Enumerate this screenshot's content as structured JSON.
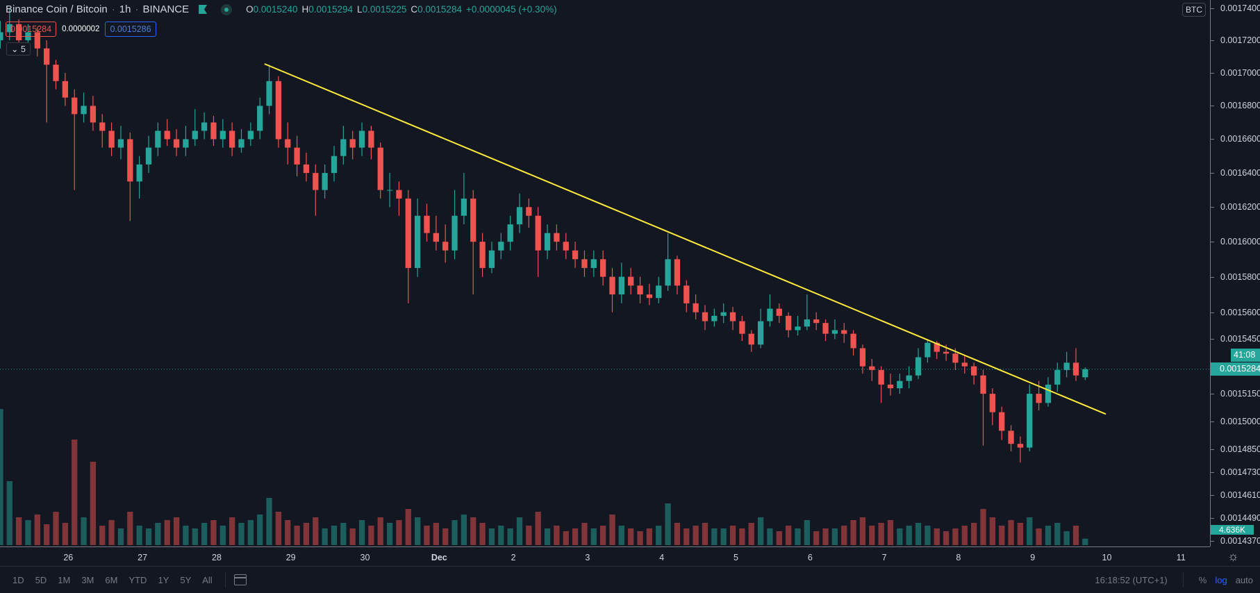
{
  "header": {
    "symbol": "Binance Coin / Bitcoin",
    "interval": "1h",
    "exchange": "BINANCE",
    "ohlc": {
      "o_label": "O",
      "o": "0.0015240",
      "h_label": "H",
      "h": "0.0015294",
      "l_label": "L",
      "l": "0.0015225",
      "c_label": "C",
      "c": "0.0015284",
      "change": "+0.0000045 (+0.30%)"
    },
    "bid": "0.0015284",
    "spread": "0.0000002",
    "ask": "0.0015286",
    "indicators_collapse": "5",
    "collapse_icon": "⌄"
  },
  "price_axis": {
    "currency_badge": "BTC",
    "labels": [
      "0.0017400",
      "0.0017200",
      "0.0017000",
      "0.0016800",
      "0.0016600",
      "0.0016400",
      "0.0016200",
      "0.0016000",
      "0.0015800",
      "0.0015600",
      "0.0015450",
      "0.0015150",
      "0.0015000",
      "0.0014850",
      "0.0014730",
      "0.0014610",
      "0.0014490",
      "0.0014370"
    ],
    "current_price": "0.0015284",
    "countdown": "41:08",
    "volume_label": "4.636K"
  },
  "time_axis": {
    "labels": [
      "26",
      "27",
      "28",
      "29",
      "30",
      "Dec",
      "2",
      "3",
      "4",
      "5",
      "6",
      "7",
      "8",
      "9",
      "10",
      "11"
    ]
  },
  "toolbar": {
    "ranges": [
      "1D",
      "5D",
      "1M",
      "3M",
      "6M",
      "YTD",
      "1Y",
      "5Y",
      "All"
    ],
    "clock": "16:18:52 (UTC+1)",
    "percent": "%",
    "log": "log",
    "auto": "auto",
    "settings_icon": "☼"
  },
  "colors": {
    "background": "#131722",
    "up": "#26a69a",
    "down": "#ef5350",
    "trendline": "#ffeb3b",
    "log_active": "#2962ff"
  },
  "chart_data": {
    "type": "candlestick",
    "scale": "log",
    "ylim": [
      0.00143,
      0.001745
    ],
    "grid": false,
    "start": "Nov 25 02:00",
    "step_hours": 3,
    "candles_ohlc": [
      [
        0.00172,
        0.001732,
        0.001715,
        0.001725
      ],
      [
        0.001725,
        0.00174,
        0.00172,
        0.00173
      ],
      [
        0.00173,
        0.001733,
        0.001715,
        0.00172
      ],
      [
        0.00172,
        0.00173,
        0.001718,
        0.001725
      ],
      [
        0.001725,
        0.001728,
        0.00171,
        0.001715
      ],
      [
        0.001715,
        0.00172,
        0.00167,
        0.001705
      ],
      [
        0.001705,
        0.001708,
        0.00169,
        0.001695
      ],
      [
        0.001695,
        0.0017,
        0.00168,
        0.001685
      ],
      [
        0.001685,
        0.00169,
        0.00163,
        0.001675
      ],
      [
        0.001675,
        0.001688,
        0.00167,
        0.00168
      ],
      [
        0.00168,
        0.001686,
        0.001665,
        0.00167
      ],
      [
        0.00167,
        0.001675,
        0.001655,
        0.001665
      ],
      [
        0.001665,
        0.00167,
        0.00165,
        0.001655
      ],
      [
        0.001655,
        0.001668,
        0.001648,
        0.00166
      ],
      [
        0.00166,
        0.001664,
        0.001612,
        0.001635
      ],
      [
        0.001635,
        0.00165,
        0.001625,
        0.001645
      ],
      [
        0.001645,
        0.001662,
        0.00164,
        0.001655
      ],
      [
        0.001655,
        0.00167,
        0.00165,
        0.001665
      ],
      [
        0.001665,
        0.001672,
        0.001656,
        0.00166
      ],
      [
        0.00166,
        0.001666,
        0.00165,
        0.001655
      ],
      [
        0.001655,
        0.001668,
        0.00165,
        0.00166
      ],
      [
        0.00166,
        0.001678,
        0.001656,
        0.001665
      ],
      [
        0.001665,
        0.001676,
        0.00166,
        0.00167
      ],
      [
        0.00167,
        0.001674,
        0.001656,
        0.00166
      ],
      [
        0.00166,
        0.001672,
        0.001655,
        0.001665
      ],
      [
        0.001665,
        0.00167,
        0.00165,
        0.001655
      ],
      [
        0.001655,
        0.001666,
        0.001652,
        0.00166
      ],
      [
        0.00166,
        0.00167,
        0.001656,
        0.001665
      ],
      [
        0.001665,
        0.001685,
        0.00166,
        0.00168
      ],
      [
        0.00168,
        0.001705,
        0.001675,
        0.001695
      ],
      [
        0.001695,
        0.001698,
        0.001655,
        0.00166
      ],
      [
        0.00166,
        0.00167,
        0.001645,
        0.001655
      ],
      [
        0.001655,
        0.001662,
        0.001638,
        0.001645
      ],
      [
        0.001645,
        0.001652,
        0.001635,
        0.00164
      ],
      [
        0.00164,
        0.001645,
        0.001615,
        0.00163
      ],
      [
        0.00163,
        0.001645,
        0.001625,
        0.00164
      ],
      [
        0.00164,
        0.001656,
        0.001635,
        0.00165
      ],
      [
        0.00165,
        0.001668,
        0.001645,
        0.00166
      ],
      [
        0.00166,
        0.001665,
        0.001648,
        0.001655
      ],
      [
        0.001655,
        0.00167,
        0.00165,
        0.001665
      ],
      [
        0.001665,
        0.001668,
        0.001648,
        0.001655
      ],
      [
        0.001655,
        0.001658,
        0.001625,
        0.00163
      ],
      [
        0.00163,
        0.00164,
        0.00162,
        0.00163
      ],
      [
        0.00163,
        0.001635,
        0.001615,
        0.001625
      ],
      [
        0.001625,
        0.00163,
        0.001565,
        0.001585
      ],
      [
        0.001585,
        0.001625,
        0.00158,
        0.001615
      ],
      [
        0.001615,
        0.001622,
        0.0016,
        0.001605
      ],
      [
        0.001605,
        0.001615,
        0.001595,
        0.0016
      ],
      [
        0.0016,
        0.00161,
        0.001588,
        0.001595
      ],
      [
        0.001595,
        0.00163,
        0.00159,
        0.001615
      ],
      [
        0.001615,
        0.00164,
        0.00161,
        0.001625
      ],
      [
        0.001625,
        0.00163,
        0.00157,
        0.0016
      ],
      [
        0.0016,
        0.001605,
        0.00158,
        0.001585
      ],
      [
        0.001585,
        0.0016,
        0.001582,
        0.001595
      ],
      [
        0.001595,
        0.001605,
        0.00159,
        0.0016
      ],
      [
        0.0016,
        0.001615,
        0.001595,
        0.00161
      ],
      [
        0.00161,
        0.001628,
        0.001605,
        0.00162
      ],
      [
        0.00162,
        0.001625,
        0.001608,
        0.001615
      ],
      [
        0.001615,
        0.00162,
        0.00158,
        0.001595
      ],
      [
        0.001595,
        0.00161,
        0.00159,
        0.001605
      ],
      [
        0.001605,
        0.00161,
        0.001595,
        0.0016
      ],
      [
        0.0016,
        0.001605,
        0.00159,
        0.001595
      ],
      [
        0.001595,
        0.0016,
        0.001585,
        0.00159
      ],
      [
        0.00159,
        0.001595,
        0.00158,
        0.001585
      ],
      [
        0.001585,
        0.001595,
        0.00158,
        0.00159
      ],
      [
        0.00159,
        0.001595,
        0.001575,
        0.00158
      ],
      [
        0.00158,
        0.001585,
        0.00156,
        0.00157
      ],
      [
        0.00157,
        0.001588,
        0.001565,
        0.00158
      ],
      [
        0.00158,
        0.001585,
        0.00157,
        0.001575
      ],
      [
        0.001575,
        0.00158,
        0.001565,
        0.00157
      ],
      [
        0.00157,
        0.001576,
        0.001564,
        0.001568
      ],
      [
        0.001568,
        0.00158,
        0.001565,
        0.001575
      ],
      [
        0.001575,
        0.001605,
        0.001572,
        0.00159
      ],
      [
        0.00159,
        0.001592,
        0.00157,
        0.001575
      ],
      [
        0.001575,
        0.001578,
        0.00156,
        0.001565
      ],
      [
        0.001565,
        0.00157,
        0.001556,
        0.00156
      ],
      [
        0.00156,
        0.001564,
        0.00155,
        0.001555
      ],
      [
        0.001555,
        0.001562,
        0.001552,
        0.001558
      ],
      [
        0.001558,
        0.001565,
        0.001554,
        0.00156
      ],
      [
        0.00156,
        0.001563,
        0.00155,
        0.001555
      ],
      [
        0.001555,
        0.001558,
        0.001544,
        0.001548
      ],
      [
        0.001548,
        0.00155,
        0.001538,
        0.001542
      ],
      [
        0.001542,
        0.001562,
        0.00154,
        0.001555
      ],
      [
        0.001555,
        0.00157,
        0.001552,
        0.001562
      ],
      [
        0.001562,
        0.001565,
        0.001554,
        0.001558
      ],
      [
        0.001558,
        0.00156,
        0.001546,
        0.00155
      ],
      [
        0.00155,
        0.001558,
        0.001547,
        0.001552
      ],
      [
        0.001552,
        0.00157,
        0.00155,
        0.001556
      ],
      [
        0.001556,
        0.00156,
        0.00155,
        0.001554
      ],
      [
        0.001554,
        0.001556,
        0.001544,
        0.001548
      ],
      [
        0.001548,
        0.001556,
        0.001545,
        0.00155
      ],
      [
        0.00155,
        0.001554,
        0.001543,
        0.001548
      ],
      [
        0.001548,
        0.00155,
        0.001536,
        0.00154
      ],
      [
        0.00154,
        0.001542,
        0.001526,
        0.00153
      ],
      [
        0.00153,
        0.001534,
        0.001522,
        0.001528
      ],
      [
        0.001528,
        0.00153,
        0.00151,
        0.00152
      ],
      [
        0.00152,
        0.001526,
        0.001514,
        0.001518
      ],
      [
        0.001518,
        0.001526,
        0.001515,
        0.001522
      ],
      [
        0.001522,
        0.00153,
        0.001518,
        0.001525
      ],
      [
        0.001525,
        0.00154,
        0.001523,
        0.001535
      ],
      [
        0.001535,
        0.001545,
        0.001532,
        0.001543
      ],
      [
        0.001543,
        0.001544,
        0.001534,
        0.001538
      ],
      [
        0.001538,
        0.001542,
        0.001533,
        0.001537
      ],
      [
        0.001537,
        0.00154,
        0.001528,
        0.001532
      ],
      [
        0.001532,
        0.001536,
        0.001526,
        0.00153
      ],
      [
        0.00153,
        0.001532,
        0.00152,
        0.001525
      ],
      [
        0.001525,
        0.001528,
        0.001487,
        0.001515
      ],
      [
        0.001515,
        0.001518,
        0.001498,
        0.001505
      ],
      [
        0.001505,
        0.001508,
        0.00149,
        0.001495
      ],
      [
        0.001495,
        0.001498,
        0.001484,
        0.001488
      ],
      [
        0.001488,
        0.001492,
        0.001478,
        0.001486
      ],
      [
        0.001486,
        0.00152,
        0.001484,
        0.001515
      ],
      [
        0.001515,
        0.001522,
        0.001506,
        0.00151
      ],
      [
        0.00151,
        0.001524,
        0.001508,
        0.00152
      ],
      [
        0.00152,
        0.001532,
        0.001516,
        0.001528
      ],
      [
        0.001528,
        0.001538,
        0.001524,
        0.001532
      ],
      [
        0.001532,
        0.00154,
        0.001522,
        0.001525
      ],
      [
        0.001524,
        0.0015294,
        0.0015225,
        0.0015284
      ]
    ],
    "volume_k": [
      98,
      46,
      20,
      18,
      22,
      15,
      24,
      16,
      76,
      20,
      60,
      14,
      18,
      12,
      24,
      14,
      12,
      16,
      18,
      20,
      14,
      12,
      16,
      18,
      14,
      20,
      16,
      18,
      22,
      34,
      24,
      18,
      14,
      16,
      20,
      12,
      14,
      16,
      12,
      18,
      14,
      20,
      16,
      18,
      26,
      20,
      14,
      16,
      12,
      18,
      22,
      20,
      16,
      12,
      14,
      12,
      20,
      14,
      24,
      12,
      14,
      10,
      12,
      16,
      12,
      14,
      22,
      14,
      12,
      10,
      12,
      14,
      30,
      16,
      12,
      14,
      16,
      12,
      12,
      14,
      12,
      16,
      20,
      12,
      10,
      14,
      12,
      18,
      10,
      12,
      12,
      14,
      18,
      20,
      14,
      16,
      18,
      12,
      14,
      16,
      14,
      12,
      10,
      12,
      14,
      16,
      26,
      20,
      14,
      18,
      16,
      20,
      12,
      14,
      16,
      10,
      14,
      4.636
    ],
    "trendline": [
      {
        "time": "Nov 28 15:30",
        "price": 0.0017055
      },
      {
        "time": "Dec 9 23:40",
        "price": 0.001504
      }
    ]
  }
}
